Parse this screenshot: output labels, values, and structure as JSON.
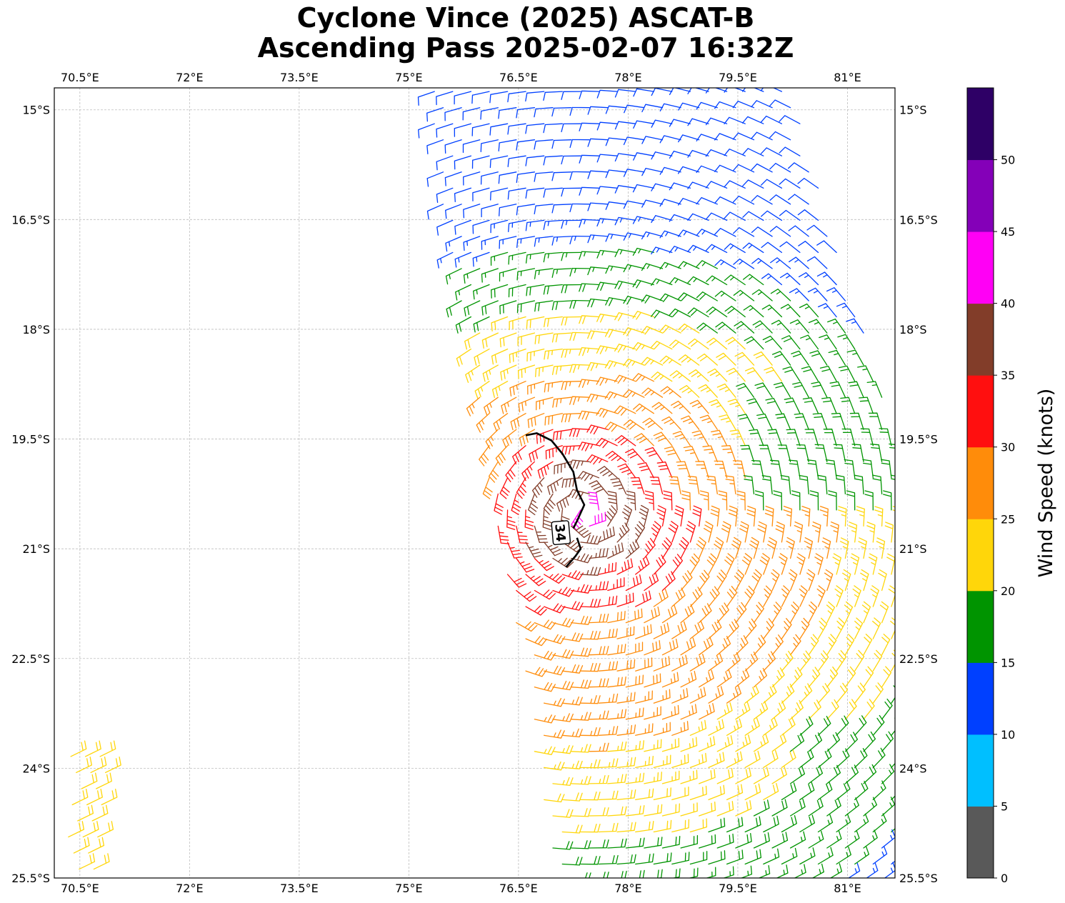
{
  "title": {
    "line1": "Cyclone Vince (2025) ASCAT-B",
    "line2": "Ascending Pass 2025-02-07 16:32Z"
  },
  "map": {
    "lon_range": [
      70.15,
      81.65
    ],
    "lat_range": [
      -25.5,
      -14.7
    ],
    "lon_ticks": [
      {
        "value": 70.5,
        "label": "70.5°E"
      },
      {
        "value": 72.0,
        "label": "72°E"
      },
      {
        "value": 73.5,
        "label": "73.5°E"
      },
      {
        "value": 75.0,
        "label": "75°E"
      },
      {
        "value": 76.5,
        "label": "76.5°E"
      },
      {
        "value": 78.0,
        "label": "78°E"
      },
      {
        "value": 79.5,
        "label": "79.5°E"
      },
      {
        "value": 81.0,
        "label": "81°E"
      }
    ],
    "lat_ticks": [
      {
        "value": -15.0,
        "label": "15°S"
      },
      {
        "value": -16.5,
        "label": "16.5°S"
      },
      {
        "value": -18.0,
        "label": "18°S"
      },
      {
        "value": -19.5,
        "label": "19.5°S"
      },
      {
        "value": -21.0,
        "label": "21°S"
      },
      {
        "value": -22.5,
        "label": "22.5°S"
      },
      {
        "value": -24.0,
        "label": "24°S"
      },
      {
        "value": -25.5,
        "label": "25.5°S"
      }
    ],
    "gridlines": "dashed",
    "storm_center": {
      "lon": 77.4,
      "lat": -20.5
    },
    "swath": {
      "west_edge": [
        [
          75.2,
          -14.7
        ],
        [
          77.0,
          -25.5
        ]
      ],
      "east_edge": [
        [
          80.2,
          -14.7
        ],
        [
          81.65,
          -19.4
        ]
      ]
    },
    "contour_34kt": {
      "label": "34",
      "points": [
        [
          76.6,
          -19.45
        ],
        [
          76.75,
          -19.42
        ],
        [
          76.95,
          -19.52
        ],
        [
          77.1,
          -19.7
        ],
        [
          77.25,
          -19.95
        ],
        [
          77.3,
          -20.2
        ],
        [
          77.4,
          -20.4
        ],
        [
          77.3,
          -20.62
        ],
        [
          77.25,
          -20.72
        ]
      ],
      "points_lower": [
        [
          77.3,
          -20.85
        ],
        [
          77.35,
          -21.0
        ],
        [
          77.28,
          -21.1
        ],
        [
          77.15,
          -21.25
        ]
      ],
      "label_position": {
        "lon": 77.08,
        "lat": -20.78
      }
    },
    "west_patch": {
      "lon_range": [
        70.2,
        70.8
      ],
      "lat_range": [
        -23.8,
        -25.5
      ],
      "speed": 22
    }
  },
  "colorbar": {
    "label": "Wind Speed (knots)",
    "bins": [
      {
        "min": 0,
        "max": 5,
        "color": "#595959"
      },
      {
        "min": 5,
        "max": 10,
        "color": "#00bfff"
      },
      {
        "min": 10,
        "max": 15,
        "color": "#0040ff"
      },
      {
        "min": 15,
        "max": 20,
        "color": "#009400"
      },
      {
        "min": 20,
        "max": 25,
        "color": "#ffd60a"
      },
      {
        "min": 25,
        "max": 30,
        "color": "#ff8c0a"
      },
      {
        "min": 30,
        "max": 35,
        "color": "#ff0f0f"
      },
      {
        "min": 35,
        "max": 40,
        "color": "#823d29"
      },
      {
        "min": 40,
        "max": 45,
        "color": "#ff00f5"
      },
      {
        "min": 45,
        "max": 50,
        "color": "#8400b8"
      },
      {
        "min": 50,
        "max": 55,
        "color": "#2e0066"
      }
    ],
    "ticks": [
      "0",
      "5",
      "10",
      "15",
      "20",
      "25",
      "30",
      "35",
      "40",
      "45",
      "50"
    ]
  },
  "chart_data": {
    "type": "wind-barb-map",
    "variable": "wind speed",
    "units": "knots",
    "barb_colors_by_speed_bin": true,
    "wind_field_summary": [
      {
        "region": "northern swath edge near 15°S-17°S",
        "speed_range_kt": [
          10,
          15
        ]
      },
      {
        "region": "band 16°S-18°S west of 79°E",
        "speed_range_kt": [
          15,
          20
        ]
      },
      {
        "region": "north of center near 18°S-19°S",
        "speed_range_kt": [
          20,
          30
        ]
      },
      {
        "region": "core west of 77.5°E near 19.5°S-21.5°S",
        "speed_range_kt": [
          30,
          45
        ]
      },
      {
        "region": "southern swath 21.5°S-25.5°S",
        "speed_range_kt": [
          20,
          30
        ]
      },
      {
        "region": "southeast corner near 80.5°E 24°S",
        "speed_range_kt": [
          15,
          20
        ]
      }
    ]
  }
}
